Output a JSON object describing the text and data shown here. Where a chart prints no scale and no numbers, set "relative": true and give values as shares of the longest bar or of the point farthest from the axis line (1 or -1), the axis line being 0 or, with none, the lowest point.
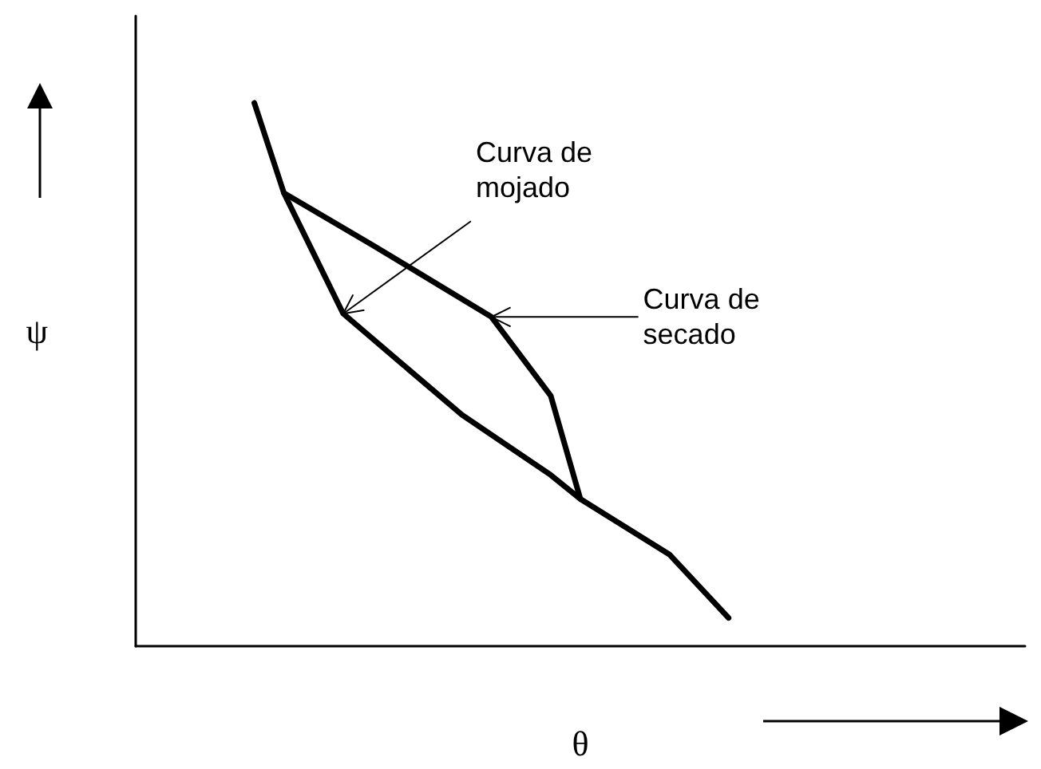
{
  "chart_data": {
    "type": "line",
    "relative": true,
    "xlabel": "θ",
    "ylabel": "ψ",
    "marker": "none",
    "line_style": "solid",
    "categories": [
      null,
      null,
      null,
      null,
      null,
      null,
      null,
      null,
      null,
      null,
      null,
      null,
      null,
      null,
      null,
      null,
      null,
      null,
      null,
      null,
      null,
      null,
      null,
      null,
      null,
      null,
      null,
      null,
      null,
      null,
      null
    ],
    "series": [
      {
        "color": "#000000",
        "values": [
          null,
          null,
          null,
          null,
          1,
          0.834,
          null,
          null,
          0.738,
          null,
          null,
          null,
          0.606,
          null,
          0.461,
          0.271,
          null,
          null,
          0.169,
          null,
          0.052,
          null,
          null,
          null,
          null,
          null,
          null,
          null,
          null,
          null,
          null
        ]
      },
      {
        "color": "#000000",
        "values": [
          null,
          null,
          null,
          null,
          null,
          0.834,
          0.723,
          0.612,
          null,
          0.519,
          null,
          0.426,
          null,
          null,
          0.315,
          0.271,
          null,
          null,
          null,
          null,
          null,
          null,
          null,
          null,
          null,
          null,
          null,
          null,
          null,
          null,
          null
        ]
      }
    ],
    "annotations": [
      "Curva de mojado",
      "Curva de secado"
    ]
  }
}
